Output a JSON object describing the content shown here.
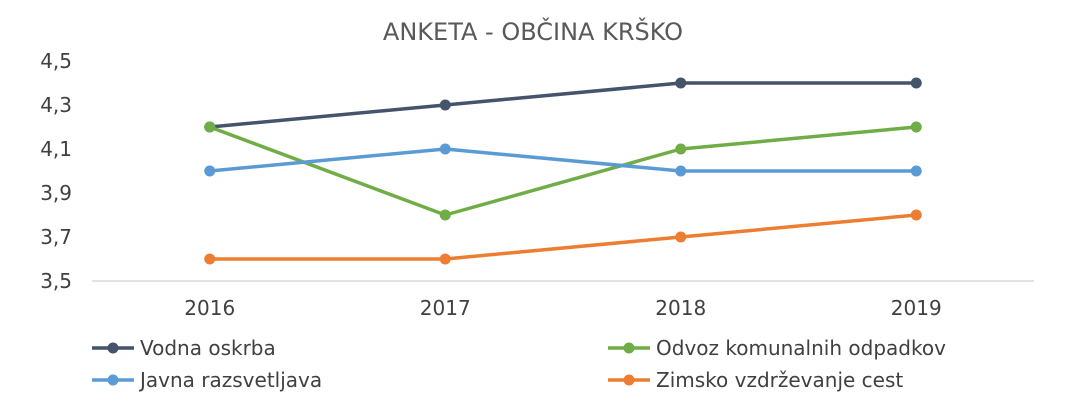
{
  "chart_data": {
    "type": "line",
    "title": "ANKETA - OBČINA KRŠKO",
    "xlabel": "",
    "ylabel": "",
    "categories": [
      "2016",
      "2017",
      "2018",
      "2019"
    ],
    "ylim": [
      3.5,
      4.5
    ],
    "y_ticks": [
      "3,5",
      "3,7",
      "3,9",
      "4,1",
      "4,3",
      "4,5"
    ],
    "grid": false,
    "legend_position": "bottom",
    "series": [
      {
        "name": "Vodna oskrba",
        "color": "#44546A",
        "values": [
          4.2,
          4.3,
          4.4,
          4.4
        ]
      },
      {
        "name": "Odvoz komunalnih odpadkov",
        "color": "#70AD47",
        "values": [
          4.2,
          3.8,
          4.1,
          4.2
        ]
      },
      {
        "name": "Javna razsvetljava",
        "color": "#5B9BD5",
        "values": [
          4.0,
          4.1,
          4.0,
          4.0
        ]
      },
      {
        "name": "Zimsko vzdrževanje cest",
        "color": "#ED7D31",
        "values": [
          3.6,
          3.6,
          3.7,
          3.8
        ]
      }
    ]
  }
}
